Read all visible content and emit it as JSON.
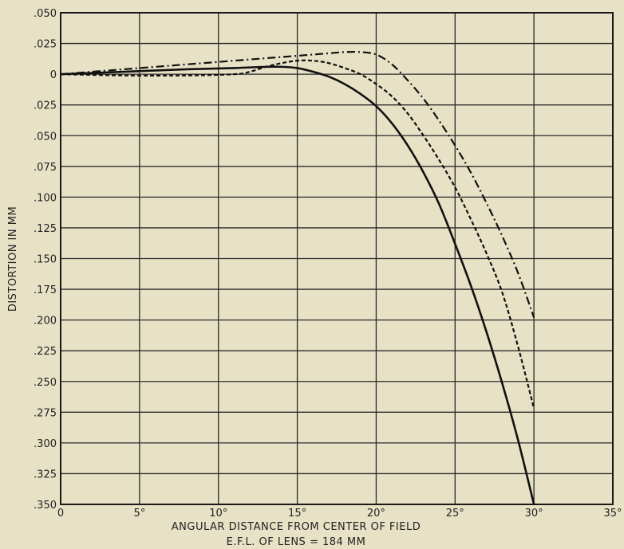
{
  "chart_data": {
    "type": "line",
    "title": "",
    "xlabel": "ANGULAR DISTANCE FROM CENTER OF FIELD",
    "subtitle": "E.F.L. OF LENS = 184 MM",
    "ylabel": "DISTORTION IN MM",
    "xlim": [
      0,
      35
    ],
    "ylim": [
      -0.35,
      0.05
    ],
    "grid": true,
    "x_ticks": [
      0,
      5,
      10,
      15,
      20,
      25,
      30,
      35
    ],
    "x_tick_labels": [
      "0",
      "5°",
      "10°",
      "15°",
      "20°",
      "25°",
      "30°",
      "35°"
    ],
    "y_ticks": [
      0.05,
      0.025,
      0,
      -0.025,
      -0.05,
      -0.075,
      -0.1,
      -0.125,
      -0.15,
      -0.175,
      -0.2,
      -0.225,
      -0.25,
      -0.275,
      -0.3,
      -0.325,
      -0.35
    ],
    "y_tick_labels": [
      ".050",
      ".025",
      "0",
      ".025",
      ".050",
      ".075",
      ".100",
      ".125",
      ".150",
      ".175",
      ".200",
      ".225",
      ".250",
      ".275",
      ".300",
      ".325",
      ".350"
    ],
    "series": [
      {
        "style": "solid",
        "x": [
          0,
          4,
          8,
          11,
          13,
          14,
          15,
          16,
          17,
          18,
          19,
          20,
          21,
          22,
          23,
          24,
          25,
          26,
          27,
          28,
          29,
          30
        ],
        "y": [
          0,
          0.002,
          0.004,
          0.005,
          0.006,
          0.006,
          0.005,
          0.002,
          -0.002,
          -0.008,
          -0.016,
          -0.026,
          -0.04,
          -0.058,
          -0.08,
          -0.106,
          -0.138,
          -0.172,
          -0.21,
          -0.252,
          -0.298,
          -0.35
        ]
      },
      {
        "style": "dashed",
        "x": [
          0,
          4,
          8,
          11,
          12,
          13,
          14,
          15,
          16,
          17,
          18,
          19,
          20,
          21,
          22,
          23,
          24,
          25,
          26,
          27,
          28,
          29,
          30
        ],
        "y": [
          0,
          -0.001,
          -0.001,
          0.0,
          0.002,
          0.006,
          0.009,
          0.011,
          0.011,
          0.009,
          0.005,
          0.0,
          -0.008,
          -0.018,
          -0.032,
          -0.05,
          -0.07,
          -0.092,
          -0.118,
          -0.146,
          -0.178,
          -0.222,
          -0.272
        ]
      },
      {
        "style": "dashdot",
        "x": [
          0,
          2,
          4,
          6,
          8,
          10,
          12,
          14,
          16,
          17,
          18,
          19,
          20,
          21,
          22,
          23,
          24,
          25,
          26,
          27,
          28,
          29,
          30
        ],
        "y": [
          0,
          0.002,
          0.004,
          0.006,
          0.008,
          0.01,
          0.012,
          0.014,
          0.016,
          0.017,
          0.018,
          0.018,
          0.016,
          0.008,
          -0.005,
          -0.02,
          -0.038,
          -0.058,
          -0.08,
          -0.105,
          -0.132,
          -0.162,
          -0.198
        ]
      }
    ]
  }
}
